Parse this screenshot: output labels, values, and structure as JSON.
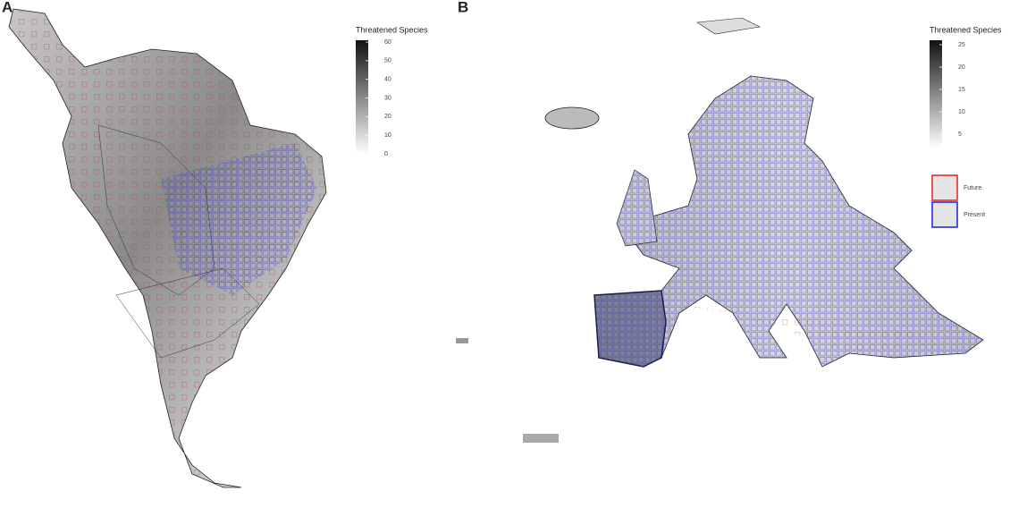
{
  "panels": [
    {
      "label": "A",
      "legend_title": "Threatened Species",
      "colorbar": {
        "lim": [
          0,
          61
        ],
        "ticks": [
          0,
          10,
          20,
          30,
          40,
          50,
          60
        ]
      }
    },
    {
      "label": "B",
      "legend_title": "Threatened Species",
      "colorbar": {
        "lim": [
          2,
          26
        ],
        "ticks": [
          5,
          10,
          15,
          20,
          25
        ]
      },
      "legend": [
        {
          "name": "Future",
          "color": "#e03030"
        },
        {
          "name": "Present",
          "color": "#2a2ae0"
        }
      ]
    }
  ]
}
